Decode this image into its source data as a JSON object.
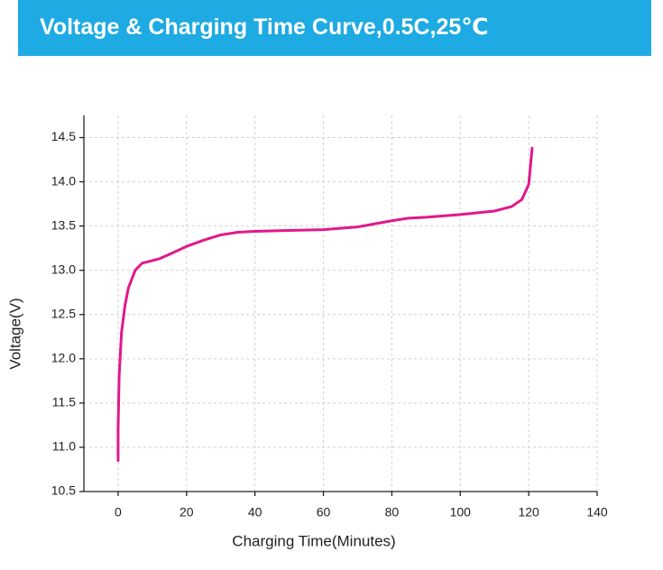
{
  "chart_data": {
    "type": "line",
    "title": "Voltage & Charging Time Curve,0.5C,25℃",
    "x_label": "Charging Time(Minutes)",
    "y_label": "Voltage(V)",
    "xlim": [
      -10,
      140
    ],
    "ylim": [
      10.5,
      14.75
    ],
    "xticks": [
      0,
      20,
      40,
      60,
      80,
      100,
      120,
      140
    ],
    "yticks": [
      10.5,
      {
        "value": 11.0,
        "label": "11.0"
      },
      11.5,
      {
        "value": 12.0,
        "label": "12.0"
      },
      12.5,
      {
        "value": 13.0,
        "label": "13.0"
      },
      13.5,
      {
        "value": 14.0,
        "label": "14.0"
      },
      14.5
    ],
    "grid": true,
    "series": [
      {
        "color": "#e0198a",
        "x": [
          0,
          0,
          0.3,
          1,
          2,
          3,
          5,
          7,
          9,
          12,
          15,
          20,
          25,
          30,
          35,
          40,
          50,
          60,
          70,
          80,
          85,
          90,
          100,
          110,
          115,
          118,
          120,
          121
        ],
        "values": [
          10.85,
          11.2,
          11.8,
          12.3,
          12.6,
          12.8,
          13.0,
          13.08,
          13.1,
          13.13,
          13.18,
          13.27,
          13.34,
          13.4,
          13.43,
          13.44,
          13.45,
          13.46,
          13.49,
          13.56,
          13.59,
          13.6,
          13.63,
          13.67,
          13.72,
          13.8,
          13.97,
          14.38
        ]
      }
    ]
  }
}
